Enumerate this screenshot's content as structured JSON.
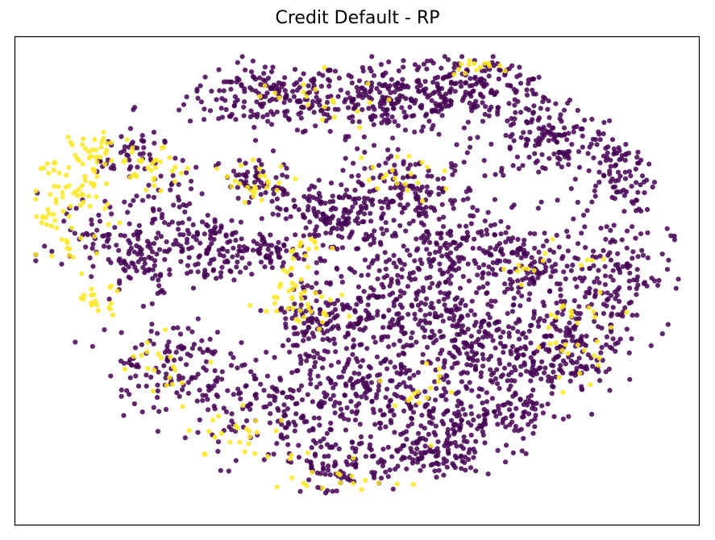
{
  "chart_data": {
    "type": "scatter",
    "title": "Credit Default - RP",
    "xlabel": "",
    "ylabel": "",
    "axes_ticks": "none",
    "grid": false,
    "legend": "none",
    "xlim": [
      0,
      100
    ],
    "ylim": [
      0,
      100
    ],
    "colors": {
      "class_0": "#440154",
      "class_1": "#fde725",
      "frame": "#000000"
    },
    "series": [
      {
        "class": 0,
        "clusters": [
          {
            "x": 37,
            "y": 88,
            "n": 180,
            "sx": 6.0,
            "sy": 3.5
          },
          {
            "x": 55,
            "y": 87,
            "n": 220,
            "sx": 6.5,
            "sy": 3.5
          },
          {
            "x": 68,
            "y": 90,
            "n": 160,
            "sx": 6.0,
            "sy": 3.0
          },
          {
            "x": 78,
            "y": 79,
            "n": 150,
            "sx": 5.5,
            "sy": 4.5
          },
          {
            "x": 88,
            "y": 72,
            "n": 90,
            "sx": 3.0,
            "sy": 4.0
          },
          {
            "x": 47,
            "y": 63,
            "n": 160,
            "sx": 3.8,
            "sy": 4.0
          },
          {
            "x": 58,
            "y": 67,
            "n": 160,
            "sx": 5.0,
            "sy": 4.5
          },
          {
            "x": 65,
            "y": 55,
            "n": 130,
            "sx": 4.5,
            "sy": 4.5
          },
          {
            "x": 75,
            "y": 52,
            "n": 150,
            "sx": 5.0,
            "sy": 5.0
          },
          {
            "x": 88,
            "y": 52,
            "n": 120,
            "sx": 4.0,
            "sy": 6.0
          },
          {
            "x": 29,
            "y": 55,
            "n": 70,
            "sx": 2.0,
            "sy": 3.5
          },
          {
            "x": 23,
            "y": 62,
            "n": 100,
            "sx": 3.5,
            "sy": 6.0
          },
          {
            "x": 18,
            "y": 55,
            "n": 70,
            "sx": 2.5,
            "sy": 4.0
          },
          {
            "x": 37,
            "y": 56,
            "n": 60,
            "sx": 2.5,
            "sy": 2.0
          },
          {
            "x": 44,
            "y": 42,
            "n": 130,
            "sx": 3.5,
            "sy": 5.0
          },
          {
            "x": 55,
            "y": 46,
            "n": 150,
            "sx": 4.5,
            "sy": 5.0
          },
          {
            "x": 64,
            "y": 38,
            "n": 160,
            "sx": 5.0,
            "sy": 5.0
          },
          {
            "x": 75,
            "y": 36,
            "n": 140,
            "sx": 5.0,
            "sy": 5.0
          },
          {
            "x": 84,
            "y": 38,
            "n": 90,
            "sx": 3.5,
            "sy": 5.0
          },
          {
            "x": 22,
            "y": 33,
            "n": 120,
            "sx": 4.5,
            "sy": 5.0
          },
          {
            "x": 38,
            "y": 24,
            "n": 160,
            "sx": 6.0,
            "sy": 5.5
          },
          {
            "x": 52,
            "y": 27,
            "n": 160,
            "sx": 5.0,
            "sy": 5.5
          },
          {
            "x": 63,
            "y": 22,
            "n": 140,
            "sx": 5.0,
            "sy": 4.5
          },
          {
            "x": 73,
            "y": 24,
            "n": 90,
            "sx": 3.5,
            "sy": 4.0
          },
          {
            "x": 48,
            "y": 12,
            "n": 100,
            "sx": 5.0,
            "sy": 3.0
          },
          {
            "x": 62,
            "y": 14,
            "n": 70,
            "sx": 3.0,
            "sy": 2.5
          },
          {
            "x": 10,
            "y": 60,
            "n": 40,
            "sx": 3.0,
            "sy": 5.0
          },
          {
            "x": 17,
            "y": 76,
            "n": 50,
            "sx": 2.5,
            "sy": 3.5
          },
          {
            "x": 35,
            "y": 70,
            "n": 60,
            "sx": 2.5,
            "sy": 3.0
          }
        ]
      },
      {
        "class": 1,
        "clusters": [
          {
            "x": 8,
            "y": 66,
            "n": 80,
            "sx": 3.0,
            "sy": 6.0
          },
          {
            "x": 12,
            "y": 76,
            "n": 30,
            "sx": 2.0,
            "sy": 2.5
          },
          {
            "x": 20,
            "y": 73,
            "n": 30,
            "sx": 2.5,
            "sy": 2.0
          },
          {
            "x": 12,
            "y": 46,
            "n": 20,
            "sx": 2.0,
            "sy": 1.5
          },
          {
            "x": 42,
            "y": 47,
            "n": 40,
            "sx": 3.0,
            "sy": 3.0
          },
          {
            "x": 35,
            "y": 70,
            "n": 25,
            "sx": 2.5,
            "sy": 2.5
          },
          {
            "x": 43,
            "y": 56,
            "n": 15,
            "sx": 2.0,
            "sy": 1.5
          },
          {
            "x": 57,
            "y": 72,
            "n": 20,
            "sx": 4.0,
            "sy": 2.5
          },
          {
            "x": 68,
            "y": 94,
            "n": 15,
            "sx": 2.5,
            "sy": 1.0
          },
          {
            "x": 82,
            "y": 38,
            "n": 30,
            "sx": 3.0,
            "sy": 4.0
          },
          {
            "x": 22,
            "y": 33,
            "n": 20,
            "sx": 3.5,
            "sy": 3.5
          },
          {
            "x": 33,
            "y": 19,
            "n": 25,
            "sx": 3.5,
            "sy": 3.0
          },
          {
            "x": 47,
            "y": 10,
            "n": 20,
            "sx": 5.0,
            "sy": 2.0
          },
          {
            "x": 78,
            "y": 53,
            "n": 15,
            "sx": 4.0,
            "sy": 4.0
          },
          {
            "x": 60,
            "y": 28,
            "n": 15,
            "sx": 4.0,
            "sy": 4.0
          },
          {
            "x": 45,
            "y": 88,
            "n": 20,
            "sx": 5.0,
            "sy": 3.0
          }
        ]
      }
    ]
  }
}
